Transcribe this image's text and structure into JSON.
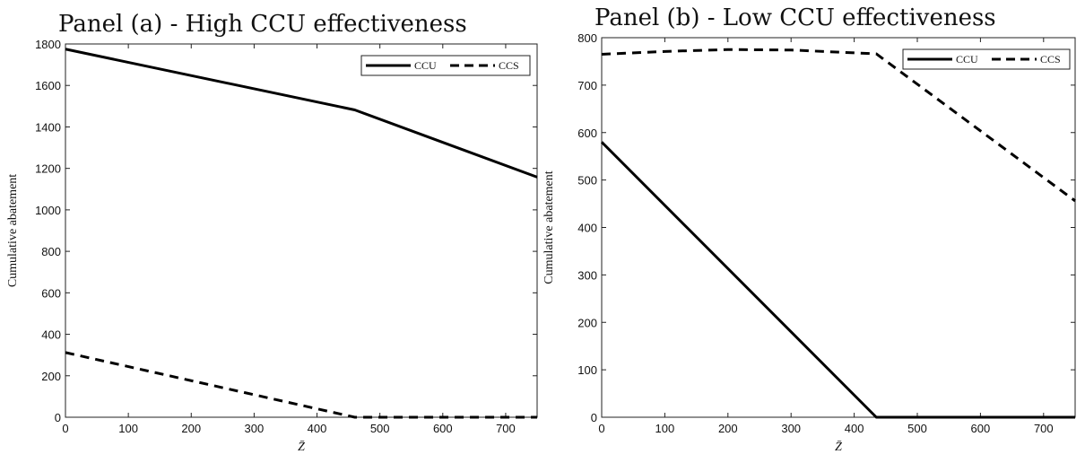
{
  "chart_data": [
    {
      "type": "line",
      "title": "Panel (a) - High CCU effectiveness",
      "xlabel": "Z̄",
      "ylabel": "Cumulative abatement",
      "xlim": [
        0,
        750
      ],
      "ylim": [
        0,
        1800
      ],
      "xticks": [
        0,
        100,
        200,
        300,
        400,
        500,
        600,
        700
      ],
      "yticks": [
        0,
        200,
        400,
        600,
        800,
        1000,
        1200,
        1400,
        1600,
        1800
      ],
      "grid": false,
      "legend_position": "top-right",
      "series": [
        {
          "name": "CCU",
          "style": "solid",
          "x": [
            0,
            460,
            750
          ],
          "y": [
            1775,
            1482,
            1158
          ]
        },
        {
          "name": "CCS",
          "style": "dashed",
          "x": [
            0,
            460,
            750
          ],
          "y": [
            312,
            0,
            0
          ]
        }
      ]
    },
    {
      "type": "line",
      "title": "Panel (b) - Low CCU effectiveness",
      "xlabel": "Z̄",
      "ylabel": "Cumulative abatement",
      "xlim": [
        0,
        750
      ],
      "ylim": [
        0,
        800
      ],
      "xticks": [
        0,
        100,
        200,
        300,
        400,
        500,
        600,
        700
      ],
      "yticks": [
        0,
        100,
        200,
        300,
        400,
        500,
        600,
        700,
        800
      ],
      "grid": false,
      "legend_position": "top-right",
      "series": [
        {
          "name": "CCU",
          "style": "solid",
          "x": [
            0,
            435,
            750
          ],
          "y": [
            580,
            0,
            0
          ]
        },
        {
          "name": "CCS",
          "style": "dashed",
          "x": [
            0,
            100,
            200,
            300,
            435,
            750
          ],
          "y": [
            765,
            771,
            775,
            774,
            766,
            456
          ]
        }
      ]
    }
  ]
}
